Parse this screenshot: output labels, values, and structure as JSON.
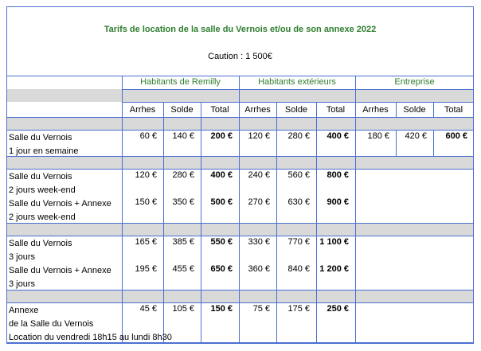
{
  "title": "Tarifs de location de la salle du Vernois et/ou de son annexe 2022",
  "caution": "Caution : 1 500€",
  "groups": [
    "Habitants de Remilly",
    "Habitants extérieurs",
    "Entreprise"
  ],
  "subheaders": [
    "Arrhes",
    "Solde",
    "Total"
  ],
  "rows": [
    {
      "label": [
        "Salle du Vernois",
        "1 jour en semaine"
      ],
      "remilly": [
        "60 €",
        "140 €",
        "200 €"
      ],
      "exterieur": [
        "120 €",
        "280 €",
        "400 €"
      ],
      "entreprise": [
        "180 €",
        "420 €",
        "600 €"
      ]
    },
    {
      "label": [
        "Salle du Vernois",
        "2 jours week-end"
      ],
      "remilly": [
        "120 €",
        "280 €",
        "400 €"
      ],
      "exterieur": [
        "240 €",
        "560 €",
        "800 €"
      ]
    },
    {
      "label": [
        "Salle du Vernois + Annexe",
        "2 jours week-end"
      ],
      "remilly": [
        "150 €",
        "350 €",
        "500 €"
      ],
      "exterieur": [
        "270 €",
        "630 €",
        "900 €"
      ]
    },
    {
      "label": [
        "Salle du Vernois",
        "3 jours"
      ],
      "remilly": [
        "165 €",
        "385 €",
        "550 €"
      ],
      "exterieur": [
        "330 €",
        "770 €",
        "1 100 €"
      ]
    },
    {
      "label": [
        "Salle du Vernois + Annexe",
        "3 jours"
      ],
      "remilly": [
        "195 €",
        "455 €",
        "650 €"
      ],
      "exterieur": [
        "360 €",
        "840 €",
        "1 200 €"
      ]
    },
    {
      "label": [
        "Annexe",
        "de la Salle du Vernois",
        "Location du vendredi 18h15 au lundi 8h30"
      ],
      "remilly": [
        "45 €",
        "105 €",
        "150 €"
      ],
      "exterieur": [
        "75 €",
        "175 €",
        "250 €"
      ]
    }
  ],
  "colors": {
    "border": "#4a6fd0",
    "title": "#2e7d2e",
    "band": "#d9d9d9"
  }
}
